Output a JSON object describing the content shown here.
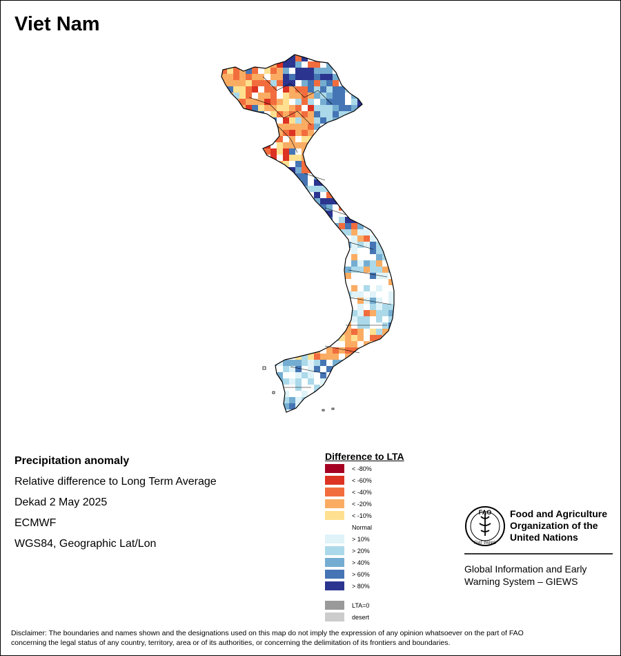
{
  "map": {
    "title": "Viet Nam"
  },
  "info": {
    "heading": "Precipitation anomaly",
    "subtitle": "Relative difference to Long Term Average",
    "period": "Dekad 2 May 2025",
    "source": "ECMWF",
    "projection": "WGS84, Geographic Lat/Lon"
  },
  "legend": {
    "title": "Difference to LTA",
    "classes": [
      {
        "label": "< -80%",
        "color": "#a50021"
      },
      {
        "label": "< -60%",
        "color": "#dd3322"
      },
      {
        "label": "< -40%",
        "color": "#f26d3d"
      },
      {
        "label": "< -20%",
        "color": "#fbac63"
      },
      {
        "label": "< -10%",
        "color": "#fee090"
      }
    ],
    "normal_label": "Normal",
    "wet_classes": [
      {
        "label": "> 10%",
        "color": "#dff3f8"
      },
      {
        "label": "> 20%",
        "color": "#abd9e9"
      },
      {
        "label": "> 40%",
        "color": "#74add1"
      },
      {
        "label": "> 60%",
        "color": "#4575b4"
      },
      {
        "label": "> 80%",
        "color": "#2b3590"
      }
    ],
    "special_classes": [
      {
        "label": "LTA=0",
        "color": "#9a9a9a"
      },
      {
        "label": "desert",
        "color": "#cccccc"
      }
    ]
  },
  "branding": {
    "org_line1": "Food and Agriculture",
    "org_line2": "Organization of the",
    "org_line3": "United Nations",
    "logo_text": "FAO",
    "logo_motto": "FIAT PANIS",
    "system_line1": "Global Information and Early",
    "system_line2": "Warning System – GIEWS"
  },
  "disclaimer": {
    "line1": "Disclaimer: The boundaries and names shown and the designations used on this map do not imply the expression of any opinion whatsoever on the part of FAO",
    "line2": "concerning the legal status of any country, territory, area or of its authorities, or concerning the delimitation of its frontiers and boundaries."
  }
}
